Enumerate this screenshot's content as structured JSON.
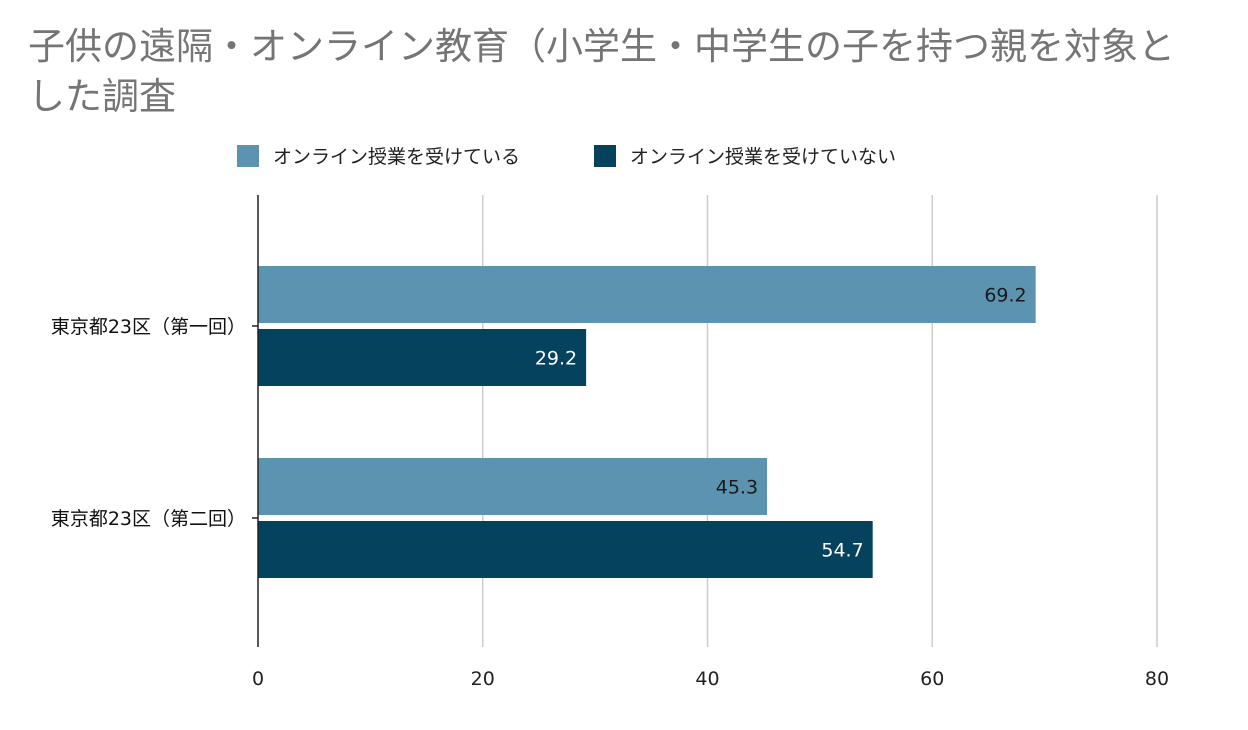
{
  "chart_data": {
    "type": "bar",
    "orientation": "horizontal",
    "title": "子供の遠隔・オンライン教育（小学生・中学生の子を持つ親を対象とした調査",
    "categories": [
      "東京都23区（第一回）",
      "東京都23区（第二回）"
    ],
    "series": [
      {
        "name": "オンライン授業を受けている",
        "color": "#5b93b0",
        "label_color": "#1a1a1a",
        "values": [
          69.2,
          45.3
        ]
      },
      {
        "name": "オンライン授業を受けていない",
        "color": "#05425e",
        "label_color": "#ffffff",
        "values": [
          29.2,
          54.7
        ]
      }
    ],
    "xlim": [
      0,
      80
    ],
    "xticks": [
      "0",
      "20",
      "40",
      "60",
      "80"
    ],
    "xtick_values": [
      0,
      20,
      40,
      60,
      80
    ],
    "grid": true,
    "legend_position": "top"
  }
}
